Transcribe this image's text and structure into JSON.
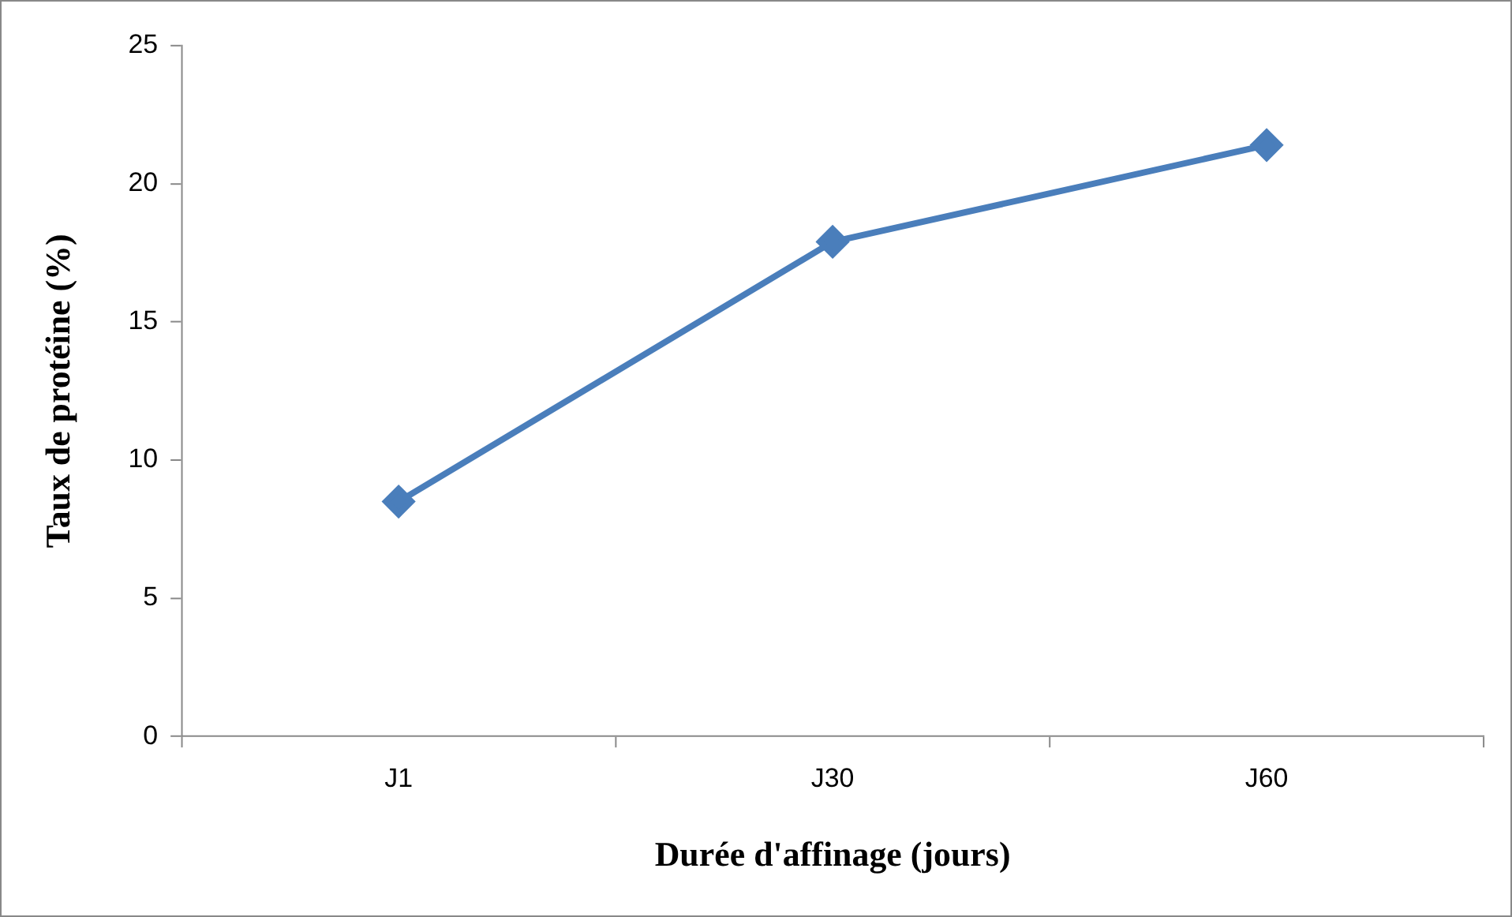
{
  "chart_data": {
    "type": "line",
    "xlabel": "Durée d'affinage (jours)",
    "ylabel": "Taux de protéine (%)",
    "categories": [
      "J1",
      "J30",
      "J60"
    ],
    "series": [
      {
        "color": "#4a7ebb",
        "values": [
          8.5,
          17.9,
          21.4
        ]
      }
    ],
    "ylim": [
      0,
      25
    ],
    "yticks": [
      0,
      5,
      10,
      15,
      20,
      25
    ],
    "grid": false,
    "legend": false,
    "marker": "diamond",
    "line_style": "solid"
  }
}
